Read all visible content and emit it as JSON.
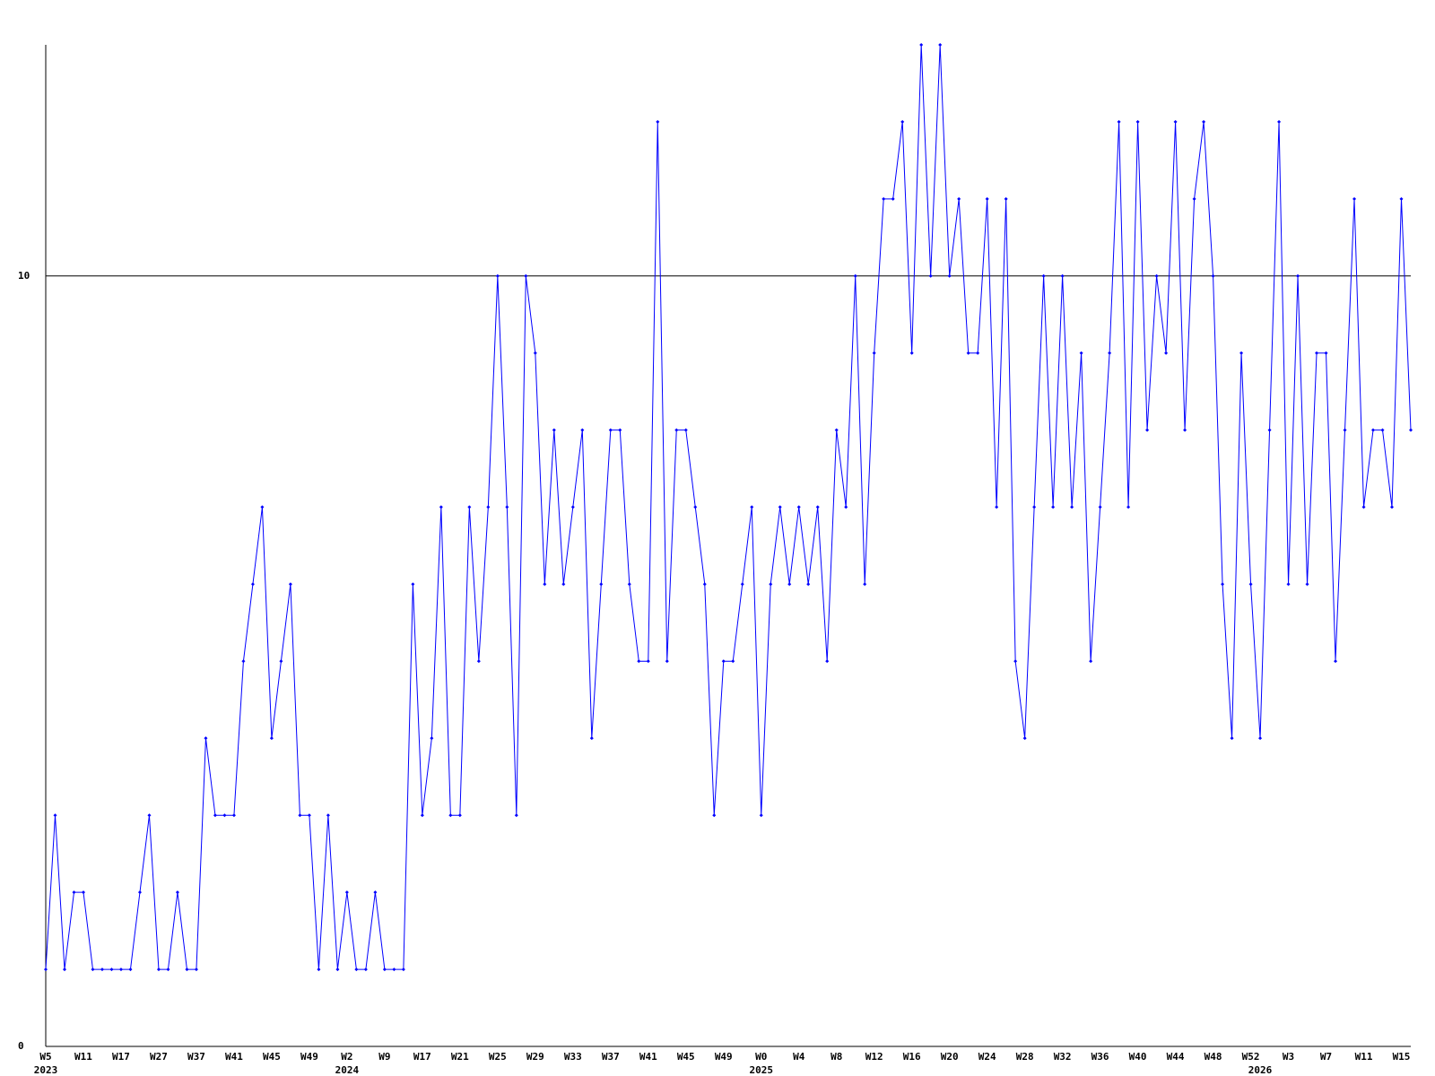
{
  "chart_data": {
    "type": "line",
    "categories": [
      "W5",
      null,
      null,
      null,
      "W11",
      null,
      null,
      null,
      "W17",
      null,
      null,
      null,
      "W27",
      null,
      null,
      null,
      "W37",
      null,
      null,
      null,
      "W41",
      null,
      null,
      null,
      "W45",
      null,
      null,
      null,
      "W49",
      null,
      null,
      null,
      "W2",
      null,
      null,
      null,
      "W9",
      null,
      null,
      null,
      "W17",
      null,
      null,
      null,
      "W21",
      null,
      null,
      null,
      "W25",
      null,
      null,
      null,
      "W29",
      null,
      null,
      null,
      "W33",
      null,
      null,
      null,
      "W37",
      null,
      null,
      null,
      "W41",
      null,
      null,
      null,
      "W45",
      null,
      null,
      null,
      "W49",
      null,
      null,
      null,
      "W0",
      null,
      null,
      null,
      "W4",
      null,
      null,
      null,
      "W8",
      null,
      null,
      null,
      "W12",
      null,
      null,
      null,
      "W16",
      null,
      null,
      null,
      "W20",
      null,
      null,
      null,
      "W24",
      null,
      null,
      null,
      "W28",
      null,
      null,
      null,
      "W32",
      null,
      null,
      null,
      "W36",
      null,
      null,
      null,
      "W40",
      null,
      null,
      null,
      "W44",
      null,
      null,
      null,
      "W48",
      null,
      null,
      null,
      "W52",
      null,
      null,
      null,
      "W3",
      null,
      null,
      null,
      "W7",
      null,
      null,
      null,
      "W11",
      null,
      null,
      null,
      "W15",
      null
    ],
    "years": [
      "2023",
      null,
      null,
      null,
      null,
      null,
      null,
      null,
      null,
      null,
      null,
      null,
      null,
      null,
      null,
      null,
      null,
      null,
      null,
      null,
      null,
      null,
      null,
      null,
      null,
      null,
      null,
      null,
      null,
      null,
      null,
      null,
      "2024",
      null,
      null,
      null,
      null,
      null,
      null,
      null,
      null,
      null,
      null,
      null,
      null,
      null,
      null,
      null,
      null,
      null,
      null,
      null,
      null,
      null,
      null,
      null,
      null,
      null,
      null,
      null,
      null,
      null,
      null,
      null,
      null,
      null,
      null,
      null,
      null,
      null,
      null,
      null,
      null,
      null,
      null,
      null,
      "2025",
      null,
      null,
      null,
      null,
      null,
      null,
      null,
      null,
      null,
      null,
      null,
      null,
      null,
      null,
      null,
      null,
      null,
      null,
      null,
      null,
      null,
      null,
      null,
      null,
      null,
      null,
      null,
      null,
      null,
      null,
      null,
      null,
      null,
      null,
      null,
      null,
      null,
      null,
      null,
      null,
      null,
      null,
      null,
      null,
      null,
      null,
      null,
      null,
      null,
      null,
      null,
      null,
      "2026",
      null,
      null,
      null,
      null,
      null,
      null,
      null,
      null,
      null,
      null,
      null,
      null,
      null,
      null,
      null,
      null
    ],
    "series": [
      {
        "color": "#0000ff",
        "values": [
          1,
          3,
          1,
          2,
          2,
          1,
          1,
          1,
          1,
          1,
          2,
          3,
          1,
          1,
          2,
          1,
          1,
          4,
          3,
          3,
          3,
          5,
          6,
          7,
          4,
          5,
          6,
          3,
          3,
          1,
          3,
          1,
          2,
          1,
          1,
          2,
          1,
          1,
          1,
          6,
          3,
          4,
          7,
          3,
          3,
          7,
          5,
          7,
          10,
          7,
          3,
          10,
          9,
          6,
          8,
          6,
          7,
          8,
          4,
          6,
          8,
          8,
          6,
          5,
          5,
          12,
          5,
          8,
          8,
          7,
          6,
          3,
          5,
          5,
          6,
          7,
          3,
          6,
          7,
          6,
          7,
          6,
          7,
          5,
          8,
          7,
          10,
          6,
          9,
          11,
          11,
          12,
          9,
          13,
          10,
          13,
          10,
          11,
          9,
          9,
          11,
          7,
          11,
          5,
          4,
          7,
          10,
          7,
          10,
          7,
          9,
          5,
          7,
          9,
          12,
          7,
          12,
          8,
          10,
          9,
          12,
          8,
          11,
          12,
          10,
          6,
          4,
          9,
          6,
          4,
          8,
          12,
          6,
          10,
          6,
          9,
          9,
          5,
          8,
          11,
          7,
          8,
          8,
          7,
          11,
          8
        ]
      }
    ],
    "ylim": [
      0,
      13
    ],
    "yticks": [
      0,
      10
    ],
    "grid": true
  }
}
